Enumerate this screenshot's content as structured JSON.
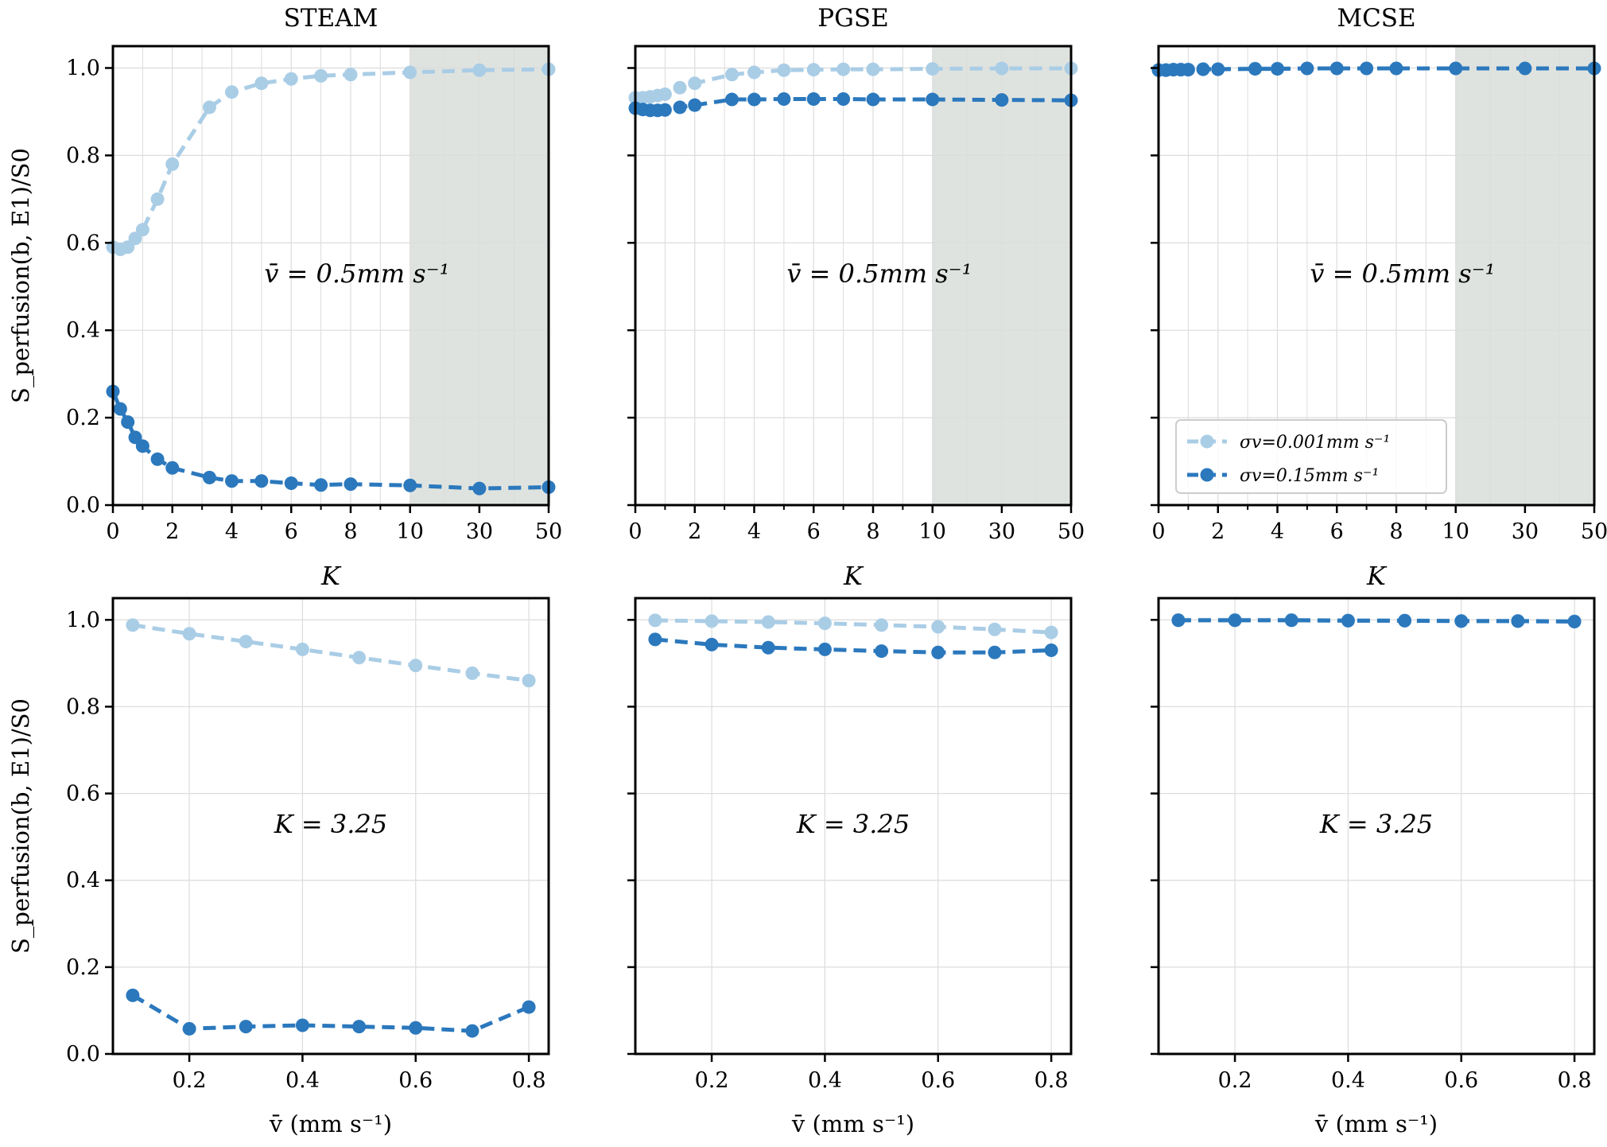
{
  "colors": {
    "light": "#aacde6",
    "dark": "#2b78bd",
    "shade": "#dfe3df",
    "grid": "#dcdcdc"
  },
  "panel_titles": [
    "STEAM",
    "PGSE",
    "MCSE"
  ],
  "ylabel": "S_perfusion(b, E1)/S0",
  "xlabel_top": "K",
  "xlabel_bottom": "v̄ (mm s⁻¹)",
  "annotation_top": "v̄ = 0.5mm s⁻¹",
  "annotation_bottom": "K = 3.25",
  "legend": {
    "light_label": "σv=0.001mm s⁻¹",
    "dark_label": "σv=0.15mm s⁻¹"
  },
  "chart_data": [
    {
      "type": "line",
      "panel": "STEAM",
      "title": "STEAM",
      "xlabel": "K",
      "xticks": [
        "0",
        "2",
        "4",
        "6",
        "8",
        "10",
        "30",
        "50"
      ],
      "yticks": [
        "0.0",
        "0.2",
        "0.4",
        "0.6",
        "0.8",
        "1.0"
      ],
      "ylim": [
        0,
        1.05
      ],
      "x_scale": "piecewise: linear 0-10, compressed 10-50",
      "shaded_region": [
        10,
        50
      ],
      "annotation": "v̄ = 0.5mm s⁻¹",
      "x": [
        0,
        0.25,
        0.5,
        0.75,
        1.0,
        1.5,
        2.0,
        3.25,
        4,
        5,
        6,
        7,
        8,
        10,
        30,
        50
      ],
      "series": [
        {
          "name": "σv=0.001mm s⁻¹",
          "color": "light",
          "values": [
            0.59,
            0.585,
            0.59,
            0.61,
            0.63,
            0.7,
            0.78,
            0.91,
            0.945,
            0.965,
            0.975,
            0.982,
            0.985,
            0.99,
            0.995,
            0.997
          ]
        },
        {
          "name": "σv=0.15mm s⁻¹",
          "color": "dark",
          "values": [
            0.26,
            0.22,
            0.19,
            0.155,
            0.135,
            0.105,
            0.085,
            0.063,
            0.055,
            0.055,
            0.05,
            0.046,
            0.048,
            0.045,
            0.038,
            0.041
          ]
        }
      ]
    },
    {
      "type": "line",
      "panel": "PGSE",
      "title": "PGSE",
      "xlabel": "K",
      "xticks": [
        "0",
        "2",
        "4",
        "6",
        "8",
        "10",
        "30",
        "50"
      ],
      "yticks": [
        "0.0",
        "0.2",
        "0.4",
        "0.6",
        "0.8",
        "1.0"
      ],
      "ylim": [
        0,
        1.05
      ],
      "shaded_region": [
        10,
        50
      ],
      "annotation": "v̄ = 0.5mm s⁻¹",
      "x": [
        0,
        0.25,
        0.5,
        0.75,
        1.0,
        1.5,
        2.0,
        3.25,
        4,
        5,
        6,
        7,
        8,
        10,
        30,
        50
      ],
      "series": [
        {
          "name": "σv=0.001mm s⁻¹",
          "color": "light",
          "values": [
            0.932,
            0.932,
            0.934,
            0.937,
            0.94,
            0.955,
            0.965,
            0.985,
            0.99,
            0.995,
            0.996,
            0.997,
            0.997,
            0.998,
            0.999,
            0.999
          ]
        },
        {
          "name": "σv=0.15mm s⁻¹",
          "color": "dark",
          "values": [
            0.908,
            0.905,
            0.903,
            0.903,
            0.904,
            0.91,
            0.915,
            0.928,
            0.928,
            0.929,
            0.929,
            0.929,
            0.928,
            0.928,
            0.927,
            0.926
          ]
        }
      ]
    },
    {
      "type": "line",
      "panel": "MCSE",
      "title": "MCSE",
      "xlabel": "K",
      "xticks": [
        "0",
        "2",
        "4",
        "6",
        "8",
        "10",
        "30",
        "50"
      ],
      "yticks": [
        "0.0",
        "0.2",
        "0.4",
        "0.6",
        "0.8",
        "1.0"
      ],
      "ylim": [
        0,
        1.05
      ],
      "shaded_region": [
        10,
        50
      ],
      "annotation": "v̄ = 0.5mm s⁻¹",
      "legend_position": "lower-left",
      "x": [
        0,
        0.25,
        0.5,
        0.75,
        1.0,
        1.5,
        2.0,
        3.25,
        4,
        5,
        6,
        7,
        8,
        10,
        30,
        50
      ],
      "series": [
        {
          "name": "σv=0.001mm s⁻¹",
          "color": "light",
          "values": [
            0.996,
            0.996,
            0.997,
            0.997,
            0.997,
            0.998,
            0.998,
            0.999,
            0.999,
            0.999,
            0.999,
            0.999,
            0.999,
            0.999,
            0.999,
            0.999
          ]
        },
        {
          "name": "σv=0.15mm s⁻¹",
          "color": "dark",
          "values": [
            0.995,
            0.995,
            0.996,
            0.996,
            0.996,
            0.997,
            0.997,
            0.998,
            0.998,
            0.999,
            0.999,
            0.999,
            0.999,
            0.999,
            0.999,
            0.999
          ]
        }
      ]
    },
    {
      "type": "line",
      "panel": "STEAM",
      "xlabel": "v̄ (mm s⁻¹)",
      "xticks": [
        "0.2",
        "0.4",
        "0.6",
        "0.8"
      ],
      "yticks": [
        "0.0",
        "0.2",
        "0.4",
        "0.6",
        "0.8",
        "1.0"
      ],
      "xlim": [
        0.065,
        0.835
      ],
      "ylim": [
        0,
        1.05
      ],
      "annotation": "K = 3.25",
      "x": [
        0.1,
        0.2,
        0.3,
        0.4,
        0.5,
        0.6,
        0.7,
        0.8
      ],
      "series": [
        {
          "name": "σv=0.001mm s⁻¹",
          "color": "light",
          "values": [
            0.988,
            0.968,
            0.95,
            0.932,
            0.913,
            0.895,
            0.877,
            0.86
          ]
        },
        {
          "name": "σv=0.15mm s⁻¹",
          "color": "dark",
          "values": [
            0.135,
            0.058,
            0.063,
            0.066,
            0.063,
            0.06,
            0.053,
            0.108
          ]
        }
      ]
    },
    {
      "type": "line",
      "panel": "PGSE",
      "xlabel": "v̄ (mm s⁻¹)",
      "xticks": [
        "0.2",
        "0.4",
        "0.6",
        "0.8"
      ],
      "yticks": [
        "0.0",
        "0.2",
        "0.4",
        "0.6",
        "0.8",
        "1.0"
      ],
      "xlim": [
        0.065,
        0.835
      ],
      "ylim": [
        0,
        1.05
      ],
      "annotation": "K = 3.25",
      "x": [
        0.1,
        0.2,
        0.3,
        0.4,
        0.5,
        0.6,
        0.7,
        0.8
      ],
      "series": [
        {
          "name": "σv=0.001mm s⁻¹",
          "color": "light",
          "values": [
            0.999,
            0.997,
            0.995,
            0.992,
            0.988,
            0.984,
            0.978,
            0.971
          ]
        },
        {
          "name": "σv=0.15mm s⁻¹",
          "color": "dark",
          "values": [
            0.955,
            0.943,
            0.936,
            0.932,
            0.928,
            0.925,
            0.925,
            0.93
          ]
        }
      ]
    },
    {
      "type": "line",
      "panel": "MCSE",
      "xlabel": "v̄ (mm s⁻¹)",
      "xticks": [
        "0.2",
        "0.4",
        "0.6",
        "0.8"
      ],
      "yticks": [
        "0.0",
        "0.2",
        "0.4",
        "0.6",
        "0.8",
        "1.0"
      ],
      "xlim": [
        0.065,
        0.835
      ],
      "ylim": [
        0,
        1.05
      ],
      "annotation": "K = 3.25",
      "x": [
        0.1,
        0.2,
        0.3,
        0.4,
        0.5,
        0.6,
        0.7,
        0.8
      ],
      "series": [
        {
          "name": "σv=0.001mm s⁻¹",
          "color": "light",
          "values": [
            1.0,
            1.0,
            1.0,
            0.999,
            0.999,
            0.998,
            0.998,
            0.997
          ]
        },
        {
          "name": "σv=0.15mm s⁻¹",
          "color": "dark",
          "values": [
            0.999,
            0.999,
            0.999,
            0.998,
            0.998,
            0.997,
            0.997,
            0.996
          ]
        }
      ]
    }
  ]
}
